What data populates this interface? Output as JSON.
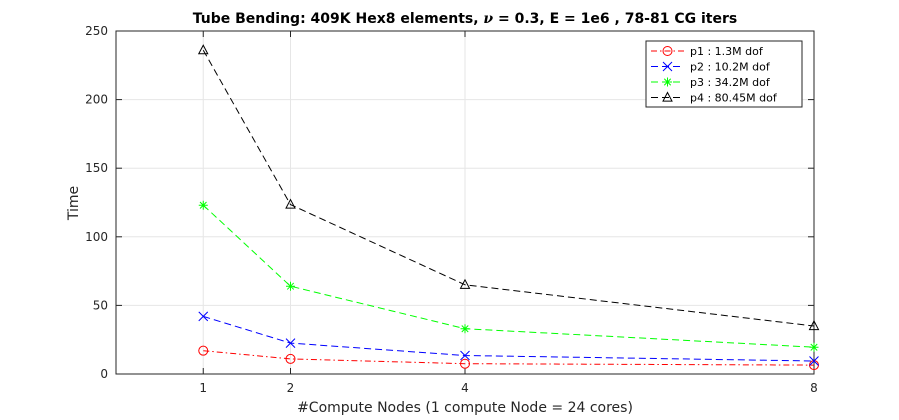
{
  "chart_data": {
    "type": "line",
    "title_parts": {
      "prefix": "Tube Bending: 409K Hex8 elements, ",
      "nu_symbol": "ν",
      "suffix": " = 0.3, E = 1e6 , 78-81 CG iters"
    },
    "xlabel": "#Compute Nodes (1 compute Node = 24 cores)",
    "ylabel": "Time",
    "xlim": [
      0,
      8
    ],
    "ylim": [
      0,
      250
    ],
    "xticks": [
      1,
      2,
      4,
      8
    ],
    "yticks": [
      0,
      50,
      100,
      150,
      200,
      250
    ],
    "grid": true,
    "legend_position": "top-right",
    "x": [
      1,
      2,
      4,
      8
    ],
    "series": [
      {
        "name": "p1 : 1.3M dof",
        "values": [
          17,
          11,
          7.5,
          6.5
        ],
        "color": "#ff0000",
        "marker": "circle",
        "linestyle": "dash-dot"
      },
      {
        "name": "p2 : 10.2M dof",
        "values": [
          42,
          22.5,
          13.5,
          9.5
        ],
        "color": "#0000ff",
        "marker": "x",
        "linestyle": "dashed"
      },
      {
        "name": "p3 : 34.2M dof",
        "values": [
          123,
          64,
          33,
          19.5
        ],
        "color": "#00ff00",
        "marker": "asterisk",
        "linestyle": "dashed"
      },
      {
        "name": "p4 : 80.45M dof",
        "values": [
          236,
          123.5,
          65,
          35
        ],
        "color": "#000000",
        "marker": "triangle",
        "linestyle": "dashed"
      }
    ]
  }
}
